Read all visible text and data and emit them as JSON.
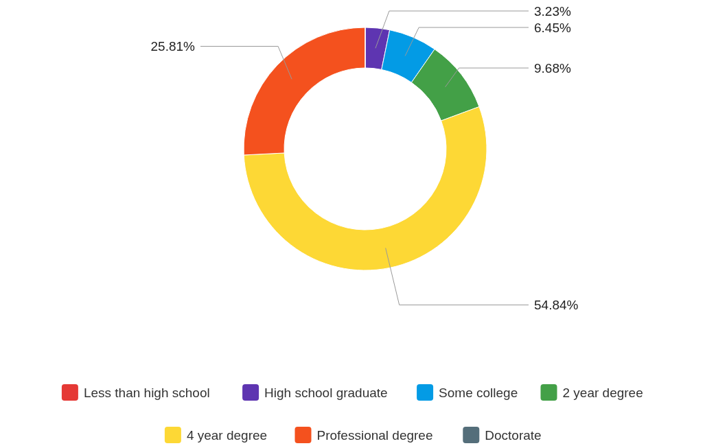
{
  "chart_data": {
    "type": "donut",
    "categories": [
      "Less than high school",
      "High school graduate",
      "Some college",
      "2 year degree",
      "4 year degree",
      "Professional degree",
      "Doctorate"
    ],
    "values": [
      0,
      3.23,
      6.45,
      9.68,
      54.84,
      25.81,
      0
    ],
    "colors": [
      "#e53935",
      "#5e35b1",
      "#039be5",
      "#43a047",
      "#fdd835",
      "#f4511e",
      "#546e7a"
    ],
    "value_labels": [
      null,
      "3.23%",
      "6.45%",
      "9.68%",
      "54.84%",
      "25.81%",
      null
    ],
    "legend": "bottom"
  }
}
